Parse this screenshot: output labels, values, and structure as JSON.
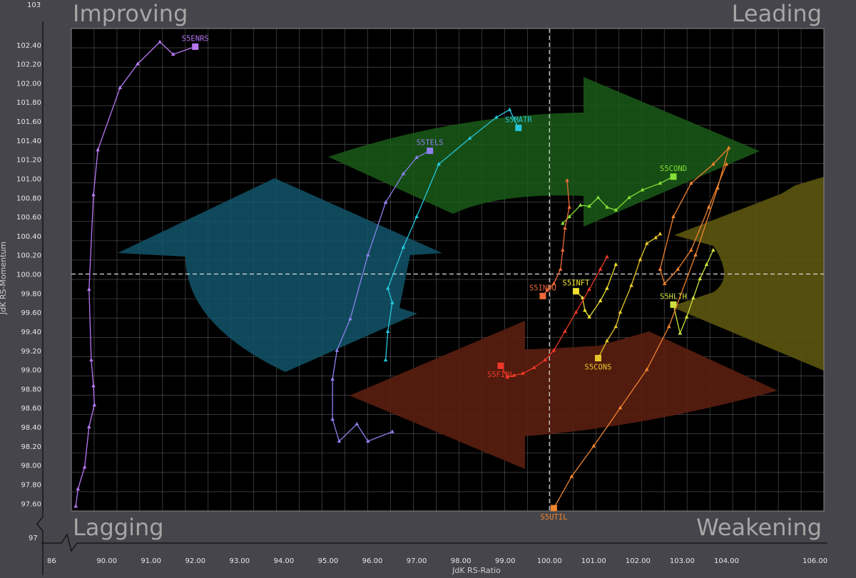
{
  "chart_data": {
    "type": "scatter",
    "title": "",
    "quadrants": {
      "top_left": "Improving",
      "top_right": "Leading",
      "bottom_left": "Lagging",
      "bottom_right": "Weakening"
    },
    "xlabel": "JdK RS-Ratio",
    "ylabel": "JdK RS-Momentum",
    "xlim": [
      89.2,
      106.2
    ],
    "ylim": [
      97.52,
      102.57
    ],
    "x_ticks": [
      "90.00",
      "91.00",
      "92.00",
      "93.00",
      "94.00",
      "95.00",
      "96.00",
      "97.00",
      "98.00",
      "99.00",
      "100.00",
      "101.00",
      "102.00",
      "103.00",
      "104.00",
      "106.00"
    ],
    "y_ticks": [
      "102.40",
      "102.20",
      "102.00",
      "101.80",
      "101.60",
      "101.40",
      "101.20",
      "101.00",
      "100.80",
      "100.60",
      "100.40",
      "100.20",
      "100.00",
      "99.80",
      "99.60",
      "99.40",
      "99.20",
      "99.00",
      "98.80",
      "98.60",
      "98.40",
      "98.20",
      "98.00",
      "97.80",
      "97.60"
    ],
    "x_extremes": [
      "86",
      "106.00"
    ],
    "y_extremes": [
      "103",
      "97"
    ],
    "center": [
      100,
      100
    ],
    "grid": true,
    "series": [
      {
        "name": "S5ENRS",
        "color": "#b678f0",
        "x": [
          89.3,
          89.35,
          89.5,
          89.6,
          89.72,
          89.7,
          89.65,
          89.6,
          89.7,
          89.8,
          90.3,
          90.7,
          91.2,
          91.5,
          92.0
        ],
        "y": [
          97.57,
          97.75,
          97.98,
          98.4,
          98.63,
          98.83,
          99.1,
          99.84,
          100.83,
          101.3,
          101.95,
          102.2,
          102.43,
          102.3,
          102.38
        ]
      },
      {
        "name": "S5TELS",
        "color": "#8c82ee",
        "x": [
          96.45,
          95.9,
          95.65,
          95.25,
          95.1,
          95.1,
          95.2,
          95.5,
          95.9,
          96.3,
          96.7,
          97.0,
          97.3
        ],
        "y": [
          98.35,
          98.25,
          98.43,
          98.25,
          98.48,
          98.9,
          99.2,
          99.53,
          100.2,
          100.75,
          101.05,
          101.22,
          101.29
        ]
      },
      {
        "name": "S5MATR",
        "color": "#25c7dc",
        "x": [
          96.3,
          96.35,
          96.45,
          96.35,
          96.7,
          97.0,
          97.5,
          98.2,
          98.8,
          99.1,
          99.3
        ],
        "y": [
          99.1,
          99.4,
          99.7,
          99.85,
          100.28,
          100.6,
          101.15,
          101.42,
          101.64,
          101.72,
          101.53
        ]
      },
      {
        "name": "S5COND",
        "color": "#86e035",
        "x": [
          100.3,
          100.45,
          100.7,
          100.9,
          101.1,
          101.3,
          101.5,
          101.8,
          102.1,
          102.5,
          102.8
        ],
        "y": [
          100.53,
          100.6,
          100.72,
          100.71,
          100.8,
          100.7,
          100.67,
          100.8,
          100.88,
          100.95,
          101.02
        ]
      },
      {
        "name": "S5INDU",
        "color": "#ef6a3a",
        "x": [
          100.4,
          100.45,
          100.35,
          100.3,
          100.25,
          100.1,
          99.95,
          99.85
        ],
        "y": [
          100.98,
          100.7,
          100.48,
          100.25,
          100.05,
          99.9,
          99.83,
          99.77
        ]
      },
      {
        "name": "S5INFT",
        "color": "#f0e030",
        "x": [
          101.5,
          101.3,
          101.15,
          100.9,
          100.8,
          100.75,
          100.6
        ],
        "y": [
          100.1,
          99.85,
          99.72,
          99.55,
          99.62,
          99.75,
          99.82
        ]
      },
      {
        "name": "S5FINL",
        "color": "#ee3828",
        "x": [
          101.3,
          101.15,
          100.9,
          100.6,
          100.35,
          100.1,
          99.9,
          99.65,
          99.4,
          99.2,
          99.05,
          98.9
        ],
        "y": [
          100.18,
          100.05,
          99.84,
          99.6,
          99.4,
          99.2,
          99.1,
          99.02,
          98.96,
          98.94,
          98.92,
          99.04
        ]
      },
      {
        "name": "S5CONS",
        "color": "#e8c62a",
        "x": [
          102.5,
          102.4,
          102.2,
          102.05,
          101.85,
          101.6,
          101.5,
          101.3,
          101.1
        ],
        "y": [
          100.42,
          100.38,
          100.32,
          100.15,
          99.88,
          99.6,
          99.45,
          99.3,
          99.12
        ]
      },
      {
        "name": "S5HLTH",
        "color": "#cfe03c",
        "x": [
          103.7,
          103.55,
          103.4,
          103.25,
          103.1,
          102.95,
          102.8
        ],
        "y": [
          100.25,
          100.1,
          99.95,
          99.75,
          99.55,
          99.38,
          99.68
        ]
      },
      {
        "name": "S5UTIL",
        "color": "#f0832e",
        "x": [
          104.0,
          103.6,
          103.2,
          102.9,
          102.6,
          102.5,
          102.8,
          103.2,
          103.7,
          104.05,
          103.8,
          103.3,
          102.7,
          102.2,
          101.6,
          101.0,
          100.5,
          100.1
        ],
        "y": [
          101.15,
          100.7,
          100.25,
          100.05,
          99.9,
          100.05,
          100.6,
          100.95,
          101.15,
          101.32,
          100.9,
          100.2,
          99.45,
          99.0,
          98.6,
          98.2,
          97.88,
          97.55
        ]
      }
    ]
  }
}
